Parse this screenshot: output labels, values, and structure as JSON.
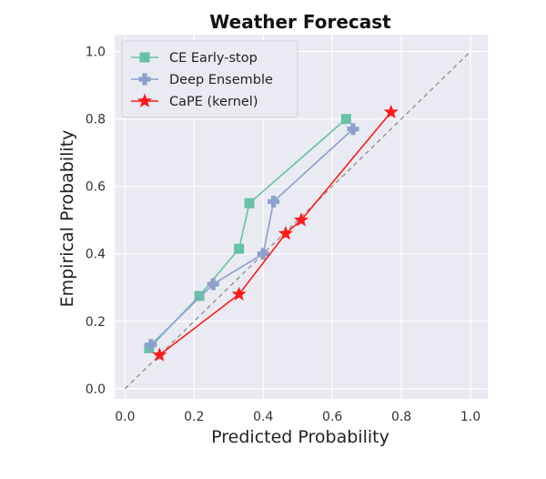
{
  "chart_data": {
    "type": "line",
    "title": "Weather Forecast",
    "xlabel": "Predicted Probability",
    "ylabel": "Empirical Probability",
    "xlim": [
      -0.03,
      1.05
    ],
    "ylim": [
      -0.03,
      1.05
    ],
    "xticks": [
      0.0,
      0.2,
      0.4,
      0.6,
      0.8,
      1.0
    ],
    "yticks": [
      0.0,
      0.2,
      0.4,
      0.6,
      0.8,
      1.0
    ],
    "xtick_labels": [
      "0.0",
      "0.2",
      "0.4",
      "0.6",
      "0.8",
      "1.0"
    ],
    "ytick_labels": [
      "0.0",
      "0.2",
      "0.4",
      "0.6",
      "0.8",
      "1.0"
    ],
    "grid": true,
    "background_color": "#eaeaf2",
    "legend_position": "top-left",
    "reference_line": {
      "from": [
        0,
        0
      ],
      "to": [
        1,
        1
      ],
      "style": "dashed",
      "color": "#8c8c8c"
    },
    "series": [
      {
        "name": "CE Early-stop",
        "color": "#66c2a5",
        "marker": "square",
        "x": [
          0.07,
          0.215,
          0.33,
          0.36,
          0.64
        ],
        "y": [
          0.12,
          0.275,
          0.415,
          0.55,
          0.8
        ]
      },
      {
        "name": "Deep Ensemble",
        "color": "#8da0cb",
        "marker": "plus",
        "x": [
          0.075,
          0.255,
          0.4,
          0.43,
          0.66
        ],
        "y": [
          0.13,
          0.31,
          0.4,
          0.555,
          0.77
        ]
      },
      {
        "name": "CaPE (kernel)",
        "color": "#ff1a1a",
        "marker": "star",
        "x": [
          0.1,
          0.33,
          0.465,
          0.51,
          0.77
        ],
        "y": [
          0.1,
          0.28,
          0.46,
          0.5,
          0.82
        ]
      }
    ]
  }
}
